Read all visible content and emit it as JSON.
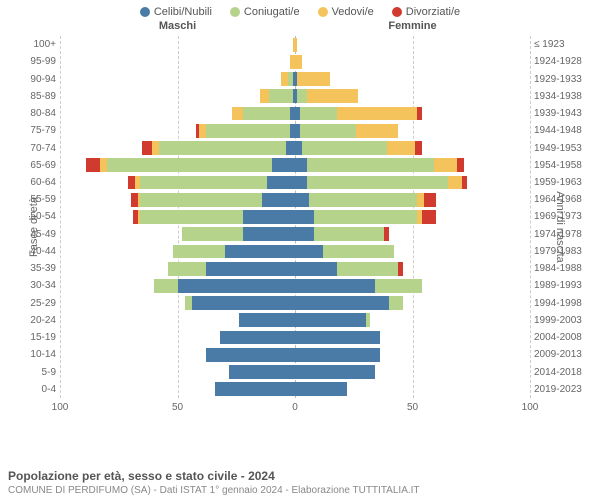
{
  "legend": {
    "items": [
      {
        "label": "Celibi/Nubili",
        "color": "#4a7ba6"
      },
      {
        "label": "Coniugati/e",
        "color": "#b5d38b"
      },
      {
        "label": "Vedovi/e",
        "color": "#f5c35c"
      },
      {
        "label": "Divorziati/e",
        "color": "#d13a2e"
      }
    ]
  },
  "headers": {
    "male": "Maschi",
    "female": "Femmine"
  },
  "axes": {
    "left_title": "Fasce di età",
    "right_title": "Anni di nascita",
    "x_max": 100,
    "x_ticks": [
      100,
      50,
      0,
      50,
      100
    ]
  },
  "colors": {
    "celibi": "#4a7ba6",
    "coniugati": "#b5d38b",
    "vedovi": "#f5c35c",
    "divorziati": "#d13a2e",
    "grid": "#cccccc",
    "text": "#666666"
  },
  "rows": [
    {
      "age": "100+",
      "birth": "≤ 1923",
      "m": {
        "c": 0,
        "co": 0,
        "v": 1,
        "d": 0
      },
      "f": {
        "c": 0,
        "co": 0,
        "v": 1,
        "d": 0
      }
    },
    {
      "age": "95-99",
      "birth": "1924-1928",
      "m": {
        "c": 0,
        "co": 0,
        "v": 2,
        "d": 0
      },
      "f": {
        "c": 0,
        "co": 0,
        "v": 3,
        "d": 0
      }
    },
    {
      "age": "90-94",
      "birth": "1929-1933",
      "m": {
        "c": 1,
        "co": 2,
        "v": 3,
        "d": 0
      },
      "f": {
        "c": 1,
        "co": 0,
        "v": 14,
        "d": 0
      }
    },
    {
      "age": "85-89",
      "birth": "1934-1938",
      "m": {
        "c": 1,
        "co": 10,
        "v": 4,
        "d": 0
      },
      "f": {
        "c": 1,
        "co": 4,
        "v": 22,
        "d": 0
      }
    },
    {
      "age": "80-84",
      "birth": "1939-1943",
      "m": {
        "c": 2,
        "co": 20,
        "v": 5,
        "d": 0
      },
      "f": {
        "c": 2,
        "co": 16,
        "v": 34,
        "d": 2
      }
    },
    {
      "age": "75-79",
      "birth": "1944-1948",
      "m": {
        "c": 2,
        "co": 36,
        "v": 3,
        "d": 1
      },
      "f": {
        "c": 2,
        "co": 24,
        "v": 18,
        "d": 0
      }
    },
    {
      "age": "70-74",
      "birth": "1949-1953",
      "m": {
        "c": 4,
        "co": 54,
        "v": 3,
        "d": 4
      },
      "f": {
        "c": 3,
        "co": 36,
        "v": 12,
        "d": 3
      }
    },
    {
      "age": "65-69",
      "birth": "1954-1958",
      "m": {
        "c": 10,
        "co": 70,
        "v": 3,
        "d": 6
      },
      "f": {
        "c": 5,
        "co": 54,
        "v": 10,
        "d": 3
      }
    },
    {
      "age": "60-64",
      "birth": "1959-1963",
      "m": {
        "c": 12,
        "co": 54,
        "v": 2,
        "d": 3
      },
      "f": {
        "c": 5,
        "co": 60,
        "v": 6,
        "d": 2
      }
    },
    {
      "age": "55-59",
      "birth": "1964-1968",
      "m": {
        "c": 14,
        "co": 52,
        "v": 1,
        "d": 3
      },
      "f": {
        "c": 6,
        "co": 46,
        "v": 3,
        "d": 5
      }
    },
    {
      "age": "50-54",
      "birth": "1969-1973",
      "m": {
        "c": 22,
        "co": 44,
        "v": 1,
        "d": 2
      },
      "f": {
        "c": 8,
        "co": 44,
        "v": 2,
        "d": 6
      }
    },
    {
      "age": "45-49",
      "birth": "1974-1978",
      "m": {
        "c": 22,
        "co": 26,
        "v": 0,
        "d": 0
      },
      "f": {
        "c": 8,
        "co": 30,
        "v": 0,
        "d": 2
      }
    },
    {
      "age": "40-44",
      "birth": "1979-1983",
      "m": {
        "c": 30,
        "co": 22,
        "v": 0,
        "d": 0
      },
      "f": {
        "c": 12,
        "co": 30,
        "v": 0,
        "d": 0
      }
    },
    {
      "age": "35-39",
      "birth": "1984-1988",
      "m": {
        "c": 38,
        "co": 16,
        "v": 0,
        "d": 0
      },
      "f": {
        "c": 18,
        "co": 26,
        "v": 0,
        "d": 2
      }
    },
    {
      "age": "30-34",
      "birth": "1989-1993",
      "m": {
        "c": 50,
        "co": 10,
        "v": 0,
        "d": 0
      },
      "f": {
        "c": 34,
        "co": 20,
        "v": 0,
        "d": 0
      }
    },
    {
      "age": "25-29",
      "birth": "1994-1998",
      "m": {
        "c": 44,
        "co": 3,
        "v": 0,
        "d": 0
      },
      "f": {
        "c": 40,
        "co": 6,
        "v": 0,
        "d": 0
      }
    },
    {
      "age": "20-24",
      "birth": "1999-2003",
      "m": {
        "c": 24,
        "co": 0,
        "v": 0,
        "d": 0
      },
      "f": {
        "c": 30,
        "co": 2,
        "v": 0,
        "d": 0
      }
    },
    {
      "age": "15-19",
      "birth": "2004-2008",
      "m": {
        "c": 32,
        "co": 0,
        "v": 0,
        "d": 0
      },
      "f": {
        "c": 36,
        "co": 0,
        "v": 0,
        "d": 0
      }
    },
    {
      "age": "10-14",
      "birth": "2009-2013",
      "m": {
        "c": 38,
        "co": 0,
        "v": 0,
        "d": 0
      },
      "f": {
        "c": 36,
        "co": 0,
        "v": 0,
        "d": 0
      }
    },
    {
      "age": "5-9",
      "birth": "2014-2018",
      "m": {
        "c": 28,
        "co": 0,
        "v": 0,
        "d": 0
      },
      "f": {
        "c": 34,
        "co": 0,
        "v": 0,
        "d": 0
      }
    },
    {
      "age": "0-4",
      "birth": "2019-2023",
      "m": {
        "c": 34,
        "co": 0,
        "v": 0,
        "d": 0
      },
      "f": {
        "c": 22,
        "co": 0,
        "v": 0,
        "d": 0
      }
    }
  ],
  "footer": {
    "title": "Popolazione per età, sesso e stato civile - 2024",
    "subtitle": "COMUNE DI PERDIFUMO (SA) - Dati ISTAT 1° gennaio 2024 - Elaborazione TUTTITALIA.IT"
  }
}
